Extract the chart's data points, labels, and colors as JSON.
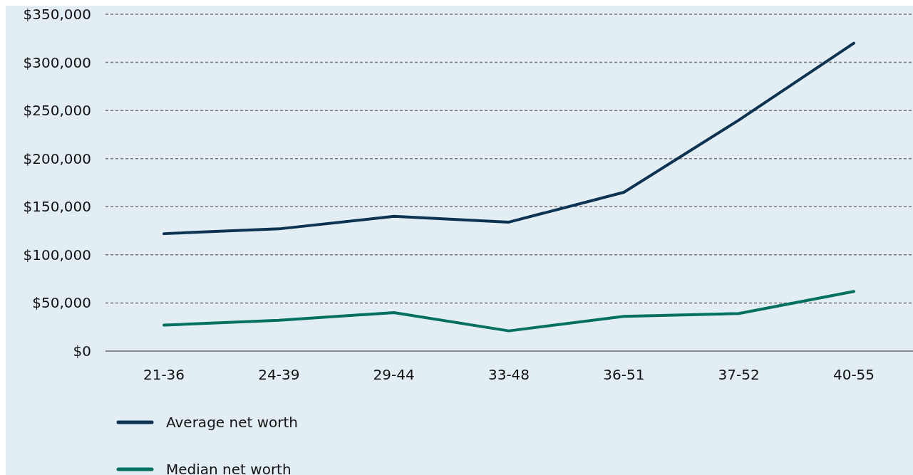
{
  "chart_data": {
    "type": "line",
    "categories": [
      "21-36",
      "24-39",
      "29-44",
      "33-48",
      "36-51",
      "37-52",
      "40-55"
    ],
    "series": [
      {
        "name": "Average net worth",
        "color": "#0d3352",
        "values": [
          122000,
          127000,
          140000,
          134000,
          165000,
          240000,
          320000
        ]
      },
      {
        "name": "Median net worth",
        "color": "#00705f",
        "values": [
          27000,
          32000,
          40000,
          21000,
          36000,
          39000,
          62000
        ]
      }
    ],
    "ylim": [
      0,
      350000
    ],
    "yticks": [
      {
        "value": 0,
        "label": "$0"
      },
      {
        "value": 50000,
        "label": "$50,000"
      },
      {
        "value": 100000,
        "label": "$100,000"
      },
      {
        "value": 150000,
        "label": "$150,000"
      },
      {
        "value": 200000,
        "label": "$200,000"
      },
      {
        "value": 250000,
        "label": "$250,000"
      },
      {
        "value": 300000,
        "label": "$300,000"
      },
      {
        "value": 350000,
        "label": "$350,000"
      }
    ],
    "grid": "y",
    "legend": "bottom",
    "line_style": "solid",
    "marker": "none"
  }
}
